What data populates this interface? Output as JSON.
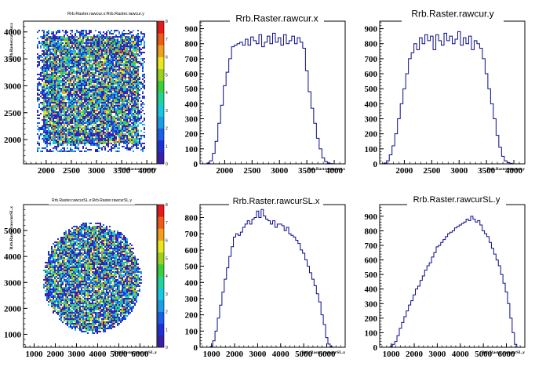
{
  "chart_data": [
    {
      "type": "heatmap",
      "title": "Rrb.Raster.rawcur.x:Rrb.Raster.rawcur.y",
      "xlabel": "Rrb.Raster.rawcur.y",
      "ylabel": "Rrb.Raster.rawcur.x",
      "xlim": [
        1550,
        4200
      ],
      "ylim": [
        1550,
        4200
      ],
      "xticks": [
        2000,
        2500,
        3000,
        3500,
        4000
      ],
      "yticks": [
        2000,
        2500,
        3000,
        3500,
        4000
      ],
      "xtick_labels": [
        "2000",
        "2500",
        "3000",
        "3500",
        "4000"
      ],
      "ytick_labels": [
        "2000",
        "2500",
        "3000",
        "3500",
        "4000"
      ],
      "region": {
        "shape": "square",
        "x_range": [
          1850,
          3900
        ],
        "y_range": [
          1850,
          4000
        ]
      },
      "colorbar": {
        "range": [
          0,
          8
        ],
        "labels": [
          "0",
          "1",
          "2",
          "3",
          "4",
          "5",
          "6",
          "7",
          "8"
        ]
      }
    },
    {
      "type": "line",
      "title": "Rrb.Raster.rawcur.x",
      "xlabel": "Rrb.Raster.rawcur.x",
      "xlim": [
        1550,
        4200
      ],
      "ylim": [
        0,
        950
      ],
      "xticks": [
        2000,
        2500,
        3000,
        3500,
        4000
      ],
      "yticks": [
        0,
        100,
        200,
        300,
        400,
        500,
        600,
        700,
        800,
        900
      ],
      "xtick_labels": [
        "2000",
        "2500",
        "3000",
        "3500",
        "4000"
      ],
      "ytick_labels": [
        "0",
        "100",
        "200",
        "300",
        "400",
        "500",
        "600",
        "700",
        "800",
        "900"
      ],
      "x": [
        1700,
        1750,
        1800,
        1850,
        1900,
        1950,
        2000,
        2050,
        2100,
        2150,
        2200,
        2250,
        2300,
        2350,
        2400,
        2450,
        2500,
        2550,
        2600,
        2650,
        2700,
        2750,
        2800,
        2850,
        2900,
        2950,
        3000,
        3050,
        3100,
        3150,
        3200,
        3250,
        3300,
        3350,
        3400,
        3450,
        3500,
        3550,
        3600,
        3650,
        3700,
        3750,
        3800,
        3850,
        3900,
        3950
      ],
      "values": [
        5,
        20,
        70,
        150,
        270,
        390,
        520,
        610,
        700,
        780,
        790,
        800,
        810,
        790,
        830,
        790,
        845,
        820,
        800,
        860,
        780,
        810,
        850,
        800,
        870,
        810,
        840,
        790,
        860,
        800,
        820,
        850,
        800,
        840,
        810,
        770,
        620,
        480,
        370,
        270,
        170,
        100,
        40,
        15,
        5,
        2
      ]
    },
    {
      "type": "line",
      "title": "Rrb.Raster.rawcur.y",
      "xlabel": "Rrb.Raster.rawcur.y",
      "xlim": [
        1550,
        4200
      ],
      "ylim": [
        0,
        950
      ],
      "xticks": [
        2000,
        2500,
        3000,
        3500,
        4000
      ],
      "yticks": [
        0,
        100,
        200,
        300,
        400,
        500,
        600,
        700,
        800,
        900
      ],
      "xtick_labels": [
        "2000",
        "2500",
        "3000",
        "3500",
        "4000"
      ],
      "ytick_labels": [
        "0",
        "100",
        "200",
        "300",
        "400",
        "500",
        "600",
        "700",
        "800",
        "900"
      ],
      "x": [
        1650,
        1700,
        1750,
        1800,
        1850,
        1900,
        1950,
        2000,
        2050,
        2100,
        2150,
        2200,
        2250,
        2300,
        2350,
        2400,
        2450,
        2500,
        2550,
        2600,
        2650,
        2700,
        2750,
        2800,
        2850,
        2900,
        2950,
        3000,
        3050,
        3100,
        3150,
        3200,
        3250,
        3300,
        3350,
        3400,
        3450,
        3500,
        3550,
        3600,
        3650,
        3700,
        3750,
        3800,
        3850,
        3900,
        3950
      ],
      "values": [
        5,
        20,
        60,
        120,
        200,
        300,
        400,
        500,
        600,
        700,
        740,
        800,
        760,
        840,
        800,
        860,
        820,
        850,
        760,
        860,
        820,
        790,
        870,
        820,
        850,
        800,
        830,
        880,
        790,
        840,
        800,
        850,
        760,
        820,
        800,
        770,
        700,
        600,
        500,
        400,
        300,
        190,
        110,
        50,
        20,
        8,
        3
      ]
    },
    {
      "type": "heatmap",
      "title": "Rrb.Raster.rawcurSL.x:Rrb.Raster.rawcurSL.y",
      "xlabel": "Rrb.Raster.rawcurSL.y",
      "ylabel": "Rrb.Raster.rawcurSL.x",
      "xlim": [
        500,
        6800
      ],
      "ylim": [
        500,
        6000
      ],
      "xticks": [
        1000,
        2000,
        3000,
        4000,
        5000,
        6000
      ],
      "yticks": [
        1000,
        2000,
        3000,
        4000,
        5000
      ],
      "xtick_labels": [
        "1000",
        "2000",
        "3000",
        "4000",
        "5000",
        "6000"
      ],
      "ytick_labels": [
        "1000",
        "2000",
        "3000",
        "4000",
        "5000"
      ],
      "region": {
        "shape": "disk",
        "center": [
          3700,
          3200
        ],
        "radius_x": 2300,
        "radius_y": 2100
      },
      "colorbar": {
        "range": [
          0,
          8
        ],
        "labels": [
          "0",
          "1",
          "2",
          "3",
          "4",
          "5",
          "6",
          "7",
          "8"
        ]
      }
    },
    {
      "type": "line",
      "title": "Rrb.Raster.rawcurSL.x",
      "xlabel": "Rrb.Raster.rawcurSL.x",
      "xlim": [
        500,
        6800
      ],
      "ylim": [
        0,
        880
      ],
      "xticks": [
        1000,
        2000,
        3000,
        4000,
        5000,
        6000
      ],
      "yticks": [
        0,
        100,
        200,
        300,
        400,
        500,
        600,
        700,
        800
      ],
      "xtick_labels": [
        "1000",
        "2000",
        "3000",
        "4000",
        "5000",
        "6000"
      ],
      "ytick_labels": [
        "0",
        "100",
        "200",
        "300",
        "400",
        "500",
        "600",
        "700",
        "800"
      ],
      "x": [
        1000,
        1100,
        1200,
        1300,
        1400,
        1500,
        1600,
        1700,
        1800,
        1900,
        2000,
        2100,
        2200,
        2300,
        2400,
        2500,
        2600,
        2700,
        2800,
        2900,
        3000,
        3100,
        3200,
        3300,
        3400,
        3500,
        3600,
        3700,
        3800,
        3900,
        4000,
        4100,
        4200,
        4300,
        4400,
        4500,
        4600,
        4700,
        4800,
        4900,
        5000,
        5100,
        5200,
        5300,
        5400,
        5500,
        5600,
        5700,
        5800,
        5900,
        6000,
        6100,
        6200
      ],
      "values": [
        5,
        40,
        100,
        180,
        260,
        340,
        420,
        490,
        560,
        620,
        680,
        700,
        690,
        710,
        740,
        760,
        780,
        760,
        790,
        800,
        840,
        800,
        850,
        810,
        790,
        780,
        760,
        780,
        740,
        760,
        760,
        750,
        720,
        740,
        700,
        690,
        680,
        660,
        640,
        600,
        580,
        540,
        500,
        460,
        420,
        380,
        330,
        280,
        200,
        140,
        60,
        20,
        5
      ]
    },
    {
      "type": "line",
      "title": "Rrb.Raster.rawcurSL.y",
      "xlabel": "Rrb.Raster.rawcurSL.y",
      "xlim": [
        500,
        6800
      ],
      "ylim": [
        0,
        980
      ],
      "xticks": [
        1000,
        2000,
        3000,
        4000,
        5000,
        6000
      ],
      "yticks": [
        0,
        100,
        200,
        300,
        400,
        500,
        600,
        700,
        800,
        900
      ],
      "xtick_labels": [
        "1000",
        "2000",
        "3000",
        "4000",
        "5000",
        "6000"
      ],
      "ytick_labels": [
        "0",
        "100",
        "200",
        "300",
        "400",
        "500",
        "600",
        "700",
        "800",
        "900"
      ],
      "x": [
        1000,
        1100,
        1200,
        1300,
        1400,
        1500,
        1600,
        1700,
        1800,
        1900,
        2000,
        2100,
        2200,
        2300,
        2400,
        2500,
        2600,
        2700,
        2800,
        2900,
        3000,
        3100,
        3200,
        3300,
        3400,
        3500,
        3600,
        3700,
        3800,
        3900,
        4000,
        4100,
        4200,
        4300,
        4400,
        4500,
        4600,
        4700,
        4800,
        4900,
        5000,
        5100,
        5200,
        5300,
        5400,
        5500,
        5600,
        5700,
        5800,
        5900,
        6000,
        6100,
        6200,
        6300,
        6400
      ],
      "values": [
        5,
        20,
        40,
        80,
        130,
        170,
        210,
        250,
        290,
        320,
        360,
        400,
        420,
        460,
        490,
        530,
        560,
        580,
        620,
        650,
        690,
        700,
        720,
        740,
        760,
        780,
        790,
        800,
        820,
        830,
        840,
        850,
        860,
        880,
        870,
        900,
        880,
        860,
        870,
        840,
        800,
        780,
        760,
        720,
        680,
        640,
        600,
        560,
        500,
        440,
        380,
        300,
        200,
        100,
        20
      ]
    }
  ]
}
